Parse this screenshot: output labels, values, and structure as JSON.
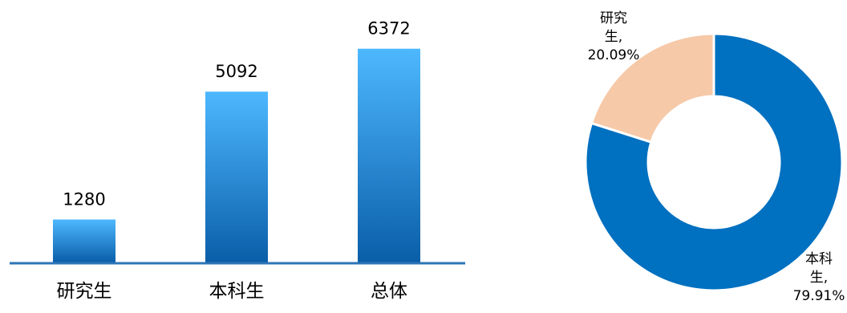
{
  "chart_data": [
    {
      "type": "bar",
      "categories": [
        "研究生",
        "本科生",
        "总体"
      ],
      "values": [
        1280,
        5092,
        6372
      ],
      "data_labels": [
        "1280",
        "5092",
        "6372"
      ],
      "ylim": [
        0,
        6700
      ],
      "grid": false,
      "legend": "none",
      "colors": {
        "bar_top": "#4db8ff",
        "bar_bottom": "#0a5ea8",
        "axis": "#2e75b6"
      }
    },
    {
      "type": "pie",
      "subtype": "donut",
      "slices": [
        {
          "category": "研究生",
          "value": 20.09,
          "label_lines": [
            "研究",
            "生,",
            "20.09%"
          ],
          "color": "#f6c9a8"
        },
        {
          "category": "本科生",
          "value": 79.91,
          "label_lines": [
            "本科",
            "生,",
            "79.91%"
          ],
          "color": "#0070c0"
        }
      ],
      "legend": "none"
    }
  ]
}
